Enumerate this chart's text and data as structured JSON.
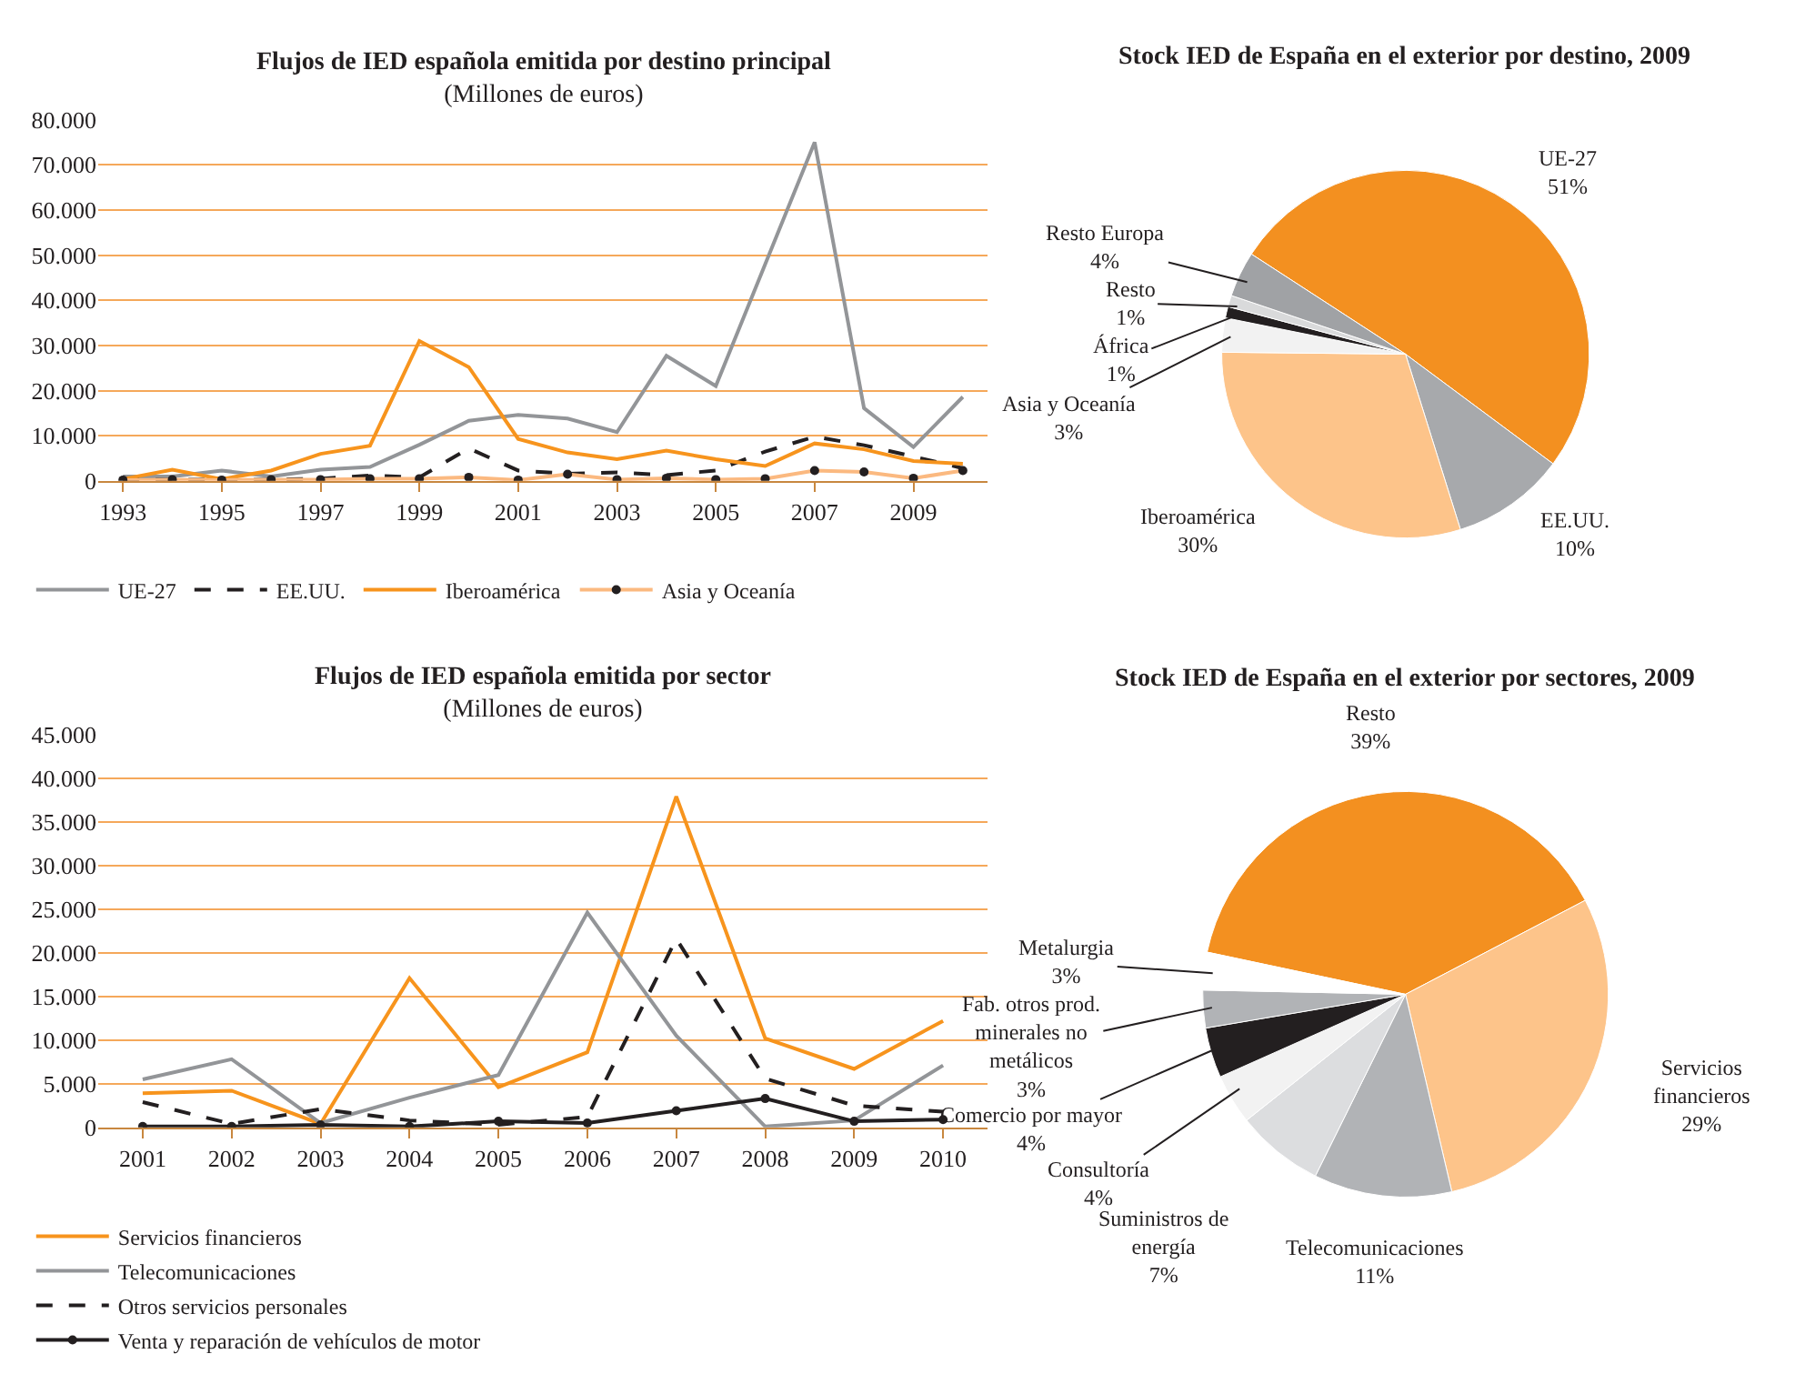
{
  "chart_data": [
    {
      "type": "line",
      "title": "Flujos de IED española emitida por destino principal",
      "subtitle": "(Millones de euros)",
      "x": [
        1993,
        1994,
        1995,
        1996,
        1997,
        1998,
        1999,
        2000,
        2001,
        2002,
        2003,
        2004,
        2005,
        2006,
        2007,
        2008,
        2009,
        2010
      ],
      "xlim": [
        1992.5,
        2010.5
      ],
      "xticks": [
        1993,
        1995,
        1997,
        1999,
        2001,
        2003,
        2005,
        2007,
        2009
      ],
      "ylim": [
        0,
        80000
      ],
      "yticks": [
        {
          "value": 0,
          "label": "0"
        },
        {
          "value": 10000,
          "label": "10.000"
        },
        {
          "value": 20000,
          "label": "20.000"
        },
        {
          "value": 30000,
          "label": "30.000"
        },
        {
          "value": 40000,
          "label": "40.000"
        },
        {
          "value": 50000,
          "label": "50.000"
        },
        {
          "value": 60000,
          "label": "60.000"
        },
        {
          "value": 70000,
          "label": "70.000"
        },
        {
          "value": 80000,
          "label": "80.000"
        }
      ],
      "grid": "y",
      "legend": "bottom",
      "series": [
        {
          "name": "UE-27",
          "color": "#939598",
          "values": [
            1000,
            1000,
            2300,
            1000,
            2500,
            3100,
            8000,
            13300,
            14600,
            13800,
            10800,
            27700,
            21000,
            48000,
            75000,
            16100,
            7500,
            18600
          ]
        },
        {
          "name": "EE.UU.",
          "color": "#231f20",
          "line_style": "dashed",
          "values": [
            300,
            300,
            300,
            300,
            500,
            1200,
            800,
            7200,
            2300,
            1600,
            1900,
            1300,
            2300,
            6500,
            9800,
            7900,
            5400,
            2800
          ]
        },
        {
          "name": "Iberoamérica",
          "color": "#f7941d",
          "values": [
            400,
            2500,
            400,
            2300,
            6000,
            7800,
            31000,
            25200,
            9300,
            6300,
            4800,
            6700,
            4800,
            3300,
            8300,
            7000,
            4400,
            3800
          ]
        },
        {
          "name": "Asia y Oceanía",
          "color": "#fbb980",
          "marker": "circle",
          "values": [
            200,
            300,
            200,
            300,
            300,
            500,
            500,
            800,
            200,
            1500,
            300,
            600,
            300,
            500,
            2300,
            2000,
            600,
            2300
          ]
        }
      ]
    },
    {
      "type": "pie",
      "title": "Stock IED de España en el exterior por destino, 2009",
      "categories": [
        "UE-27",
        "EE.UU.",
        "Iberoamérica",
        "Asia y Oceanía",
        "África",
        "Resto",
        "Resto Europa"
      ],
      "values": [
        51,
        10,
        30,
        3,
        1,
        1,
        4
      ],
      "value_labels": [
        "51%",
        "10%",
        "30%",
        "3%",
        "1%",
        "1%",
        "4%"
      ],
      "colors": [
        "#f39020",
        "#a7a9ac",
        "#fdc48a",
        "#f2f2f2",
        "#231f20",
        "#d9dadb",
        "#a0a2a5"
      ]
    },
    {
      "type": "line",
      "title": "Flujos de IED española emitida por sector",
      "subtitle": "(Millones de euros)",
      "categories": [
        "2001",
        "2002",
        "2003",
        "2004",
        "2005",
        "2006",
        "2007",
        "2008",
        "2009",
        "2010"
      ],
      "ylim": [
        0,
        45000
      ],
      "yticks": [
        {
          "value": 0,
          "label": "0"
        },
        {
          "value": 5000,
          "label": "5.000"
        },
        {
          "value": 10000,
          "label": "10.000"
        },
        {
          "value": 15000,
          "label": "15.000"
        },
        {
          "value": 20000,
          "label": "20.000"
        },
        {
          "value": 25000,
          "label": "25.000"
        },
        {
          "value": 30000,
          "label": "30.000"
        },
        {
          "value": 35000,
          "label": "35.000"
        },
        {
          "value": 40000,
          "label": "40.000"
        },
        {
          "value": 45000,
          "label": "45.000"
        }
      ],
      "grid": "y",
      "legend": "bottom",
      "series": [
        {
          "name": "Servicios financieros",
          "color": "#f7941d",
          "values": [
            3900,
            4200,
            400,
            17100,
            4600,
            8600,
            37900,
            10200,
            6700,
            12200
          ]
        },
        {
          "name": "Telecomunicaciones",
          "color": "#939598",
          "values": [
            5500,
            7800,
            500,
            3400,
            6000,
            24600,
            10500,
            100,
            800,
            7100
          ]
        },
        {
          "name": "Otros servicios personales",
          "color": "#231f20",
          "line_style": "dashed",
          "values": [
            2900,
            400,
            2100,
            800,
            300,
            1200,
            21600,
            5600,
            2500,
            1800
          ]
        },
        {
          "name": "Venta y reparación de vehículos de motor",
          "color": "#231f20",
          "marker": "circle",
          "values": [
            100,
            100,
            300,
            100,
            700,
            500,
            1900,
            3300,
            700,
            900
          ]
        }
      ]
    },
    {
      "type": "pie",
      "title": "Stock IED de España en el exterior por sectores, 2009",
      "categories": [
        "Resto",
        "Servicios financieros",
        "Telecomunicaciones",
        "Suministros de energía",
        "Consultoría",
        "Comercio por mayor",
        "Fab. otros prod. minerales no metálicos",
        "Metalurgia"
      ],
      "values": [
        39,
        29,
        11,
        7,
        4,
        4,
        3,
        3
      ],
      "value_labels": [
        "39%",
        "29%",
        "11%",
        "7%",
        "4%",
        "4%",
        "3%",
        "3%"
      ],
      "colors": [
        "#f39020",
        "#fdc48a",
        "#b1b3b6",
        "#dcdddf",
        "#f2f2f2",
        "#231f20",
        "#b1b3b6",
        "#ffffff"
      ]
    }
  ]
}
